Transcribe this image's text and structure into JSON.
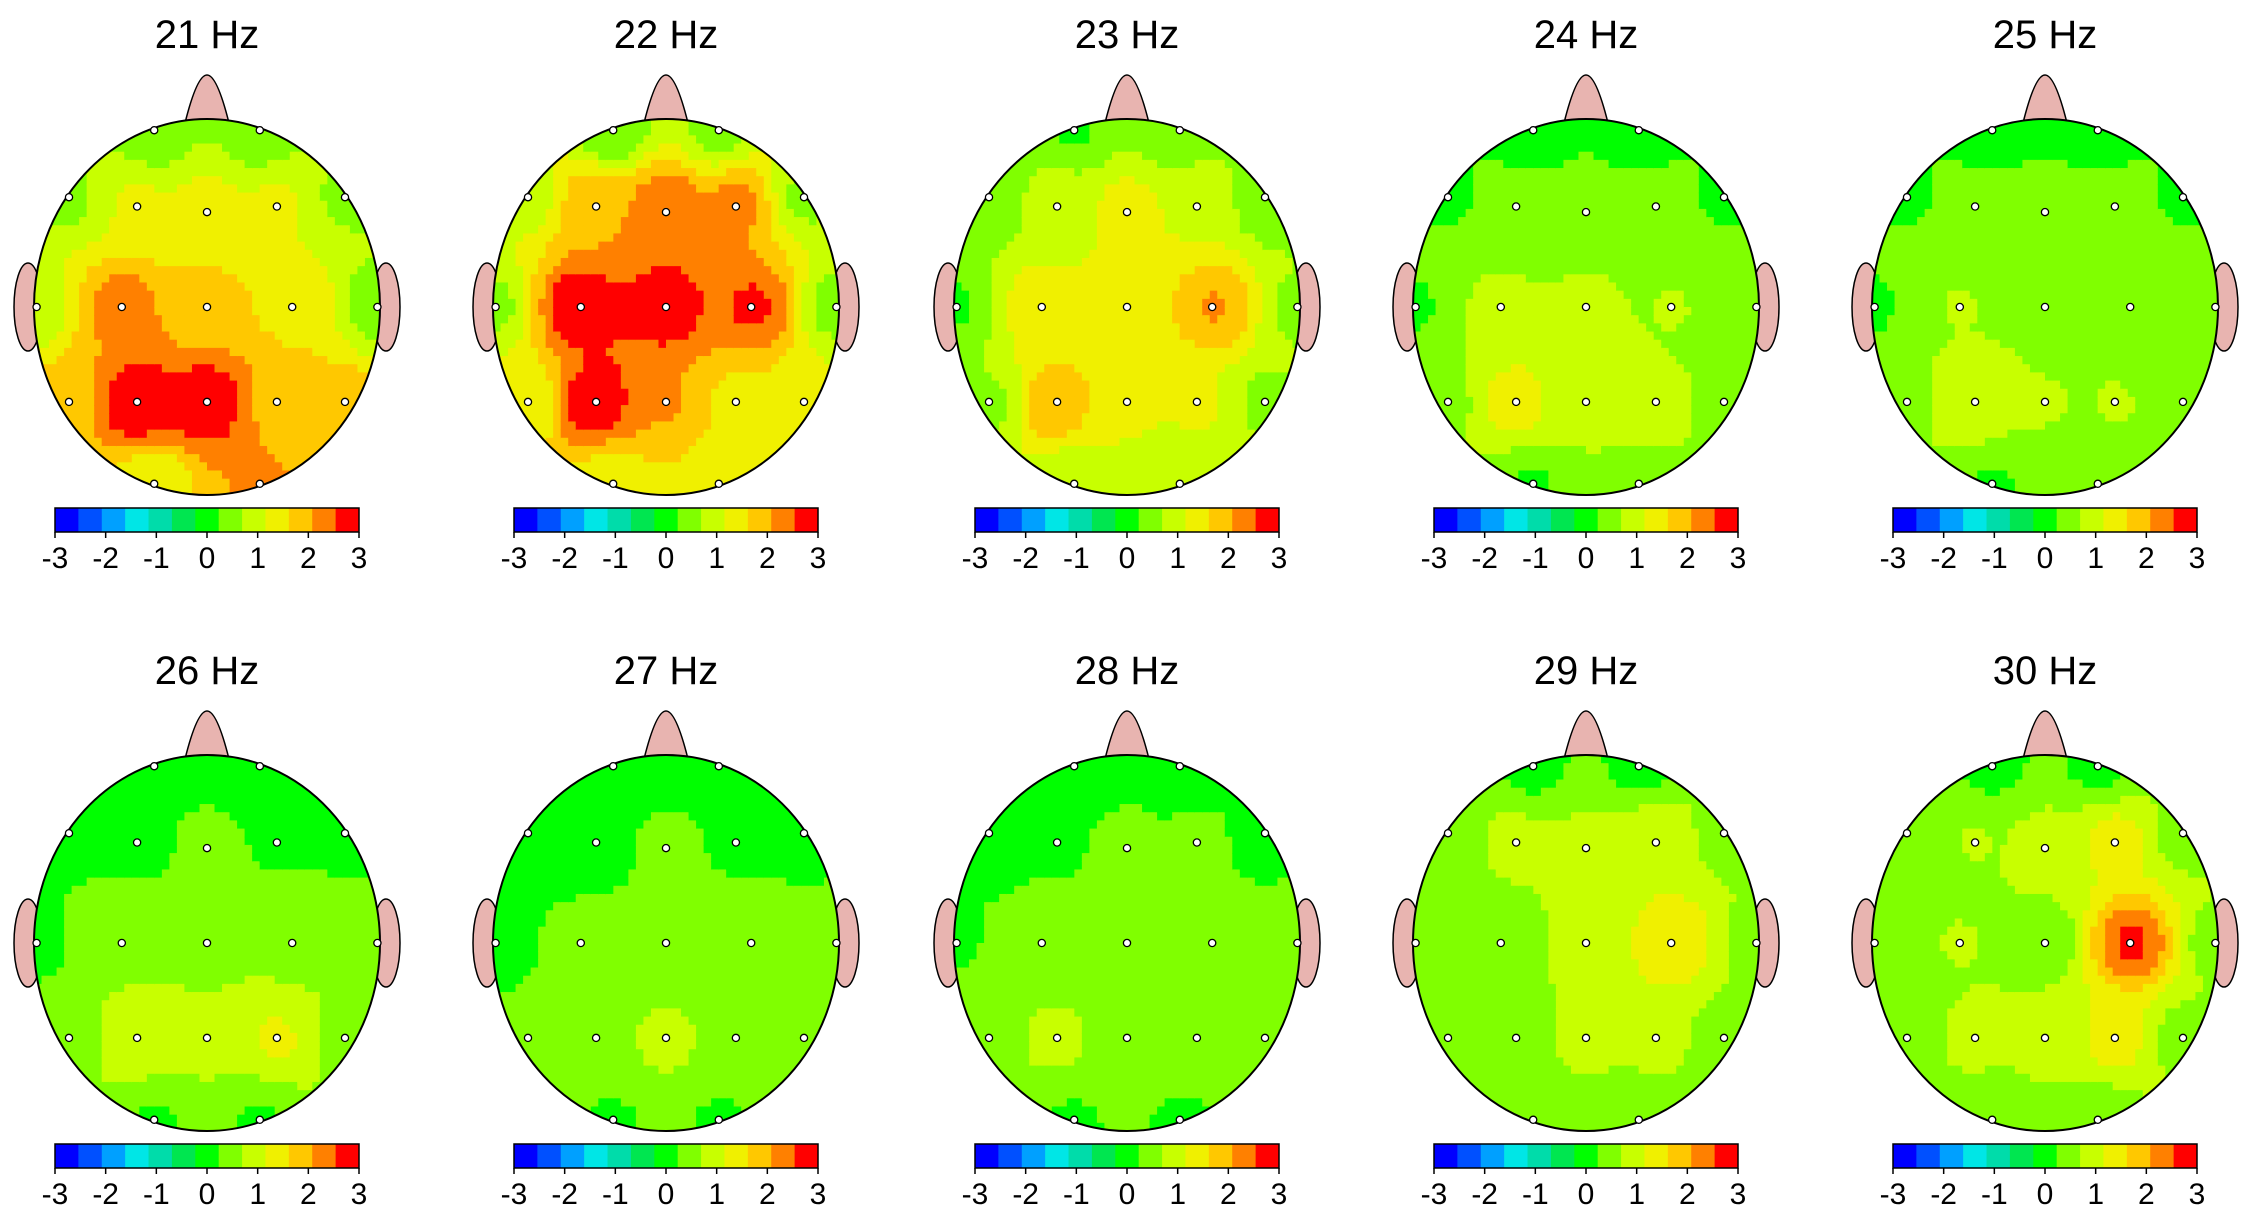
{
  "chart_data": {
    "type": "heatmap",
    "subtype": "eeg-scalp-topography",
    "colorbar": {
      "range": [
        -3,
        3
      ],
      "ticks": [
        "-3",
        "-2",
        "-1",
        "0",
        "1",
        "2",
        "3"
      ],
      "colors": [
        "#0000ff",
        "#0050ff",
        "#00a0ff",
        "#00e6e6",
        "#00dcaa",
        "#00e650",
        "#00ff00",
        "#80ff00",
        "#c8ff00",
        "#f0f000",
        "#ffc800",
        "#ff8000",
        "#ff0000"
      ]
    },
    "channels": [
      {
        "n": 1,
        "x": -0.31,
        "y": 0.95
      },
      {
        "n": 2,
        "x": 0.31,
        "y": 0.95
      },
      {
        "n": 3,
        "x": -0.81,
        "y": 0.59
      },
      {
        "n": 4,
        "x": -0.41,
        "y": 0.54
      },
      {
        "n": 5,
        "x": 0.0,
        "y": 0.51
      },
      {
        "n": 6,
        "x": 0.41,
        "y": 0.54
      },
      {
        "n": 7,
        "x": 0.81,
        "y": 0.59
      },
      {
        "n": 8,
        "x": -1.0,
        "y": 0.0
      },
      {
        "n": 9,
        "x": -0.5,
        "y": 0.0
      },
      {
        "n": 10,
        "x": 0.0,
        "y": 0.0
      },
      {
        "n": 11,
        "x": 0.5,
        "y": 0.0
      },
      {
        "n": 12,
        "x": 1.0,
        "y": 0.0
      },
      {
        "n": 13,
        "x": -0.81,
        "y": -0.51
      },
      {
        "n": 14,
        "x": -0.41,
        "y": -0.51
      },
      {
        "n": 15,
        "x": 0.0,
        "y": -0.51
      },
      {
        "n": 16,
        "x": 0.41,
        "y": -0.51
      },
      {
        "n": 17,
        "x": 0.81,
        "y": -0.51
      },
      {
        "n": 18,
        "x": -0.31,
        "y": -0.95
      },
      {
        "n": 19,
        "x": 0.31,
        "y": -0.95
      }
    ],
    "panels": [
      {
        "title": "21 Hz",
        "values": [
          0.3,
          0.3,
          0.6,
          1.2,
          1.3,
          1.2,
          0.6,
          0.8,
          2.3,
          1.8,
          1.5,
          0.4,
          1.8,
          2.9,
          2.9,
          2.0,
          1.8,
          1.2,
          2.1
        ]
      },
      {
        "title": "22 Hz",
        "values": [
          0.3,
          0.5,
          0.9,
          2.0,
          2.5,
          2.2,
          0.6,
          0.6,
          2.9,
          2.8,
          2.6,
          0.5,
          1.2,
          2.9,
          2.1,
          1.5,
          1.3,
          1.2,
          1.2
        ]
      },
      {
        "title": "23 Hz",
        "values": [
          0.2,
          0.3,
          0.3,
          0.9,
          1.3,
          1.1,
          0.3,
          0.2,
          1.4,
          1.4,
          2.1,
          0.6,
          0.6,
          2.0,
          1.2,
          1.2,
          0.6,
          0.7,
          0.8
        ]
      },
      {
        "title": "24 Hz",
        "values": [
          0.1,
          0.1,
          0.2,
          0.3,
          0.3,
          0.3,
          0.2,
          0.2,
          0.8,
          0.8,
          0.7,
          0.3,
          0.6,
          1.4,
          0.8,
          0.8,
          0.6,
          0.2,
          0.6
        ]
      },
      {
        "title": "25 Hz",
        "values": [
          0.1,
          0.1,
          0.2,
          0.3,
          0.3,
          0.3,
          0.2,
          0.2,
          0.7,
          0.6,
          0.6,
          0.3,
          0.6,
          1.1,
          0.7,
          0.7,
          0.6,
          0.2,
          0.6
        ]
      },
      {
        "title": "26 Hz",
        "values": [
          0.0,
          0.0,
          0.1,
          0.1,
          0.3,
          0.2,
          0.1,
          0.1,
          0.6,
          0.6,
          0.6,
          0.3,
          0.5,
          1.1,
          0.8,
          1.2,
          0.6,
          0.2,
          0.2
        ]
      },
      {
        "title": "27 Hz",
        "values": [
          0.0,
          0.0,
          0.0,
          0.1,
          0.3,
          0.2,
          0.1,
          0.1,
          0.3,
          0.4,
          0.4,
          0.4,
          0.3,
          0.6,
          0.8,
          0.6,
          0.4,
          0.2,
          0.2
        ]
      },
      {
        "title": "28 Hz",
        "values": [
          0.0,
          0.0,
          0.0,
          0.2,
          0.3,
          0.3,
          0.1,
          0.2,
          0.4,
          0.4,
          0.4,
          0.4,
          0.6,
          0.8,
          0.5,
          0.4,
          0.3,
          0.2,
          0.2
        ]
      },
      {
        "title": "29 Hz",
        "values": [
          0.1,
          0.1,
          0.4,
          0.8,
          0.8,
          1.1,
          0.5,
          0.3,
          0.5,
          0.8,
          1.6,
          0.5,
          0.4,
          0.6,
          0.8,
          0.8,
          0.5,
          0.3,
          0.3
        ]
      },
      {
        "title": "30 Hz",
        "values": [
          0.1,
          0.1,
          0.3,
          0.7,
          0.8,
          1.3,
          0.5,
          0.3,
          0.7,
          0.4,
          2.6,
          0.5,
          0.4,
          0.8,
          0.8,
          1.3,
          0.5,
          0.3,
          0.3
        ]
      }
    ]
  }
}
